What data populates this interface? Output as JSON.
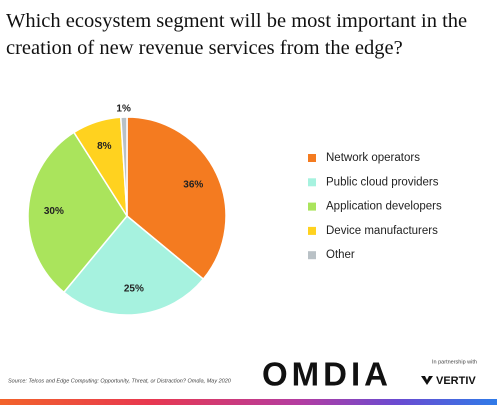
{
  "chart_data": {
    "type": "pie",
    "title": "Which ecosystem segment will be most important in the creation of new revenue services from the edge?",
    "categories": [
      "Network operators",
      "Public cloud providers",
      "Application developers",
      "Device manufacturers",
      "Other"
    ],
    "values": [
      36,
      25,
      30,
      8,
      1
    ],
    "value_labels": [
      "36%",
      "25%",
      "30%",
      "8%",
      "1%"
    ],
    "colors": [
      "#f47b20",
      "#a6f2df",
      "#aae45c",
      "#ffd21f",
      "#b9c1c6"
    ],
    "legend": "right"
  },
  "footer": {
    "source": "Source: Telcos and Edge Computing: Opportunity, Threat, or Distraction? Omdia, May 2020",
    "logo": "OMDIA",
    "partner_note": "In partnership with",
    "partner": "VERTIV"
  }
}
